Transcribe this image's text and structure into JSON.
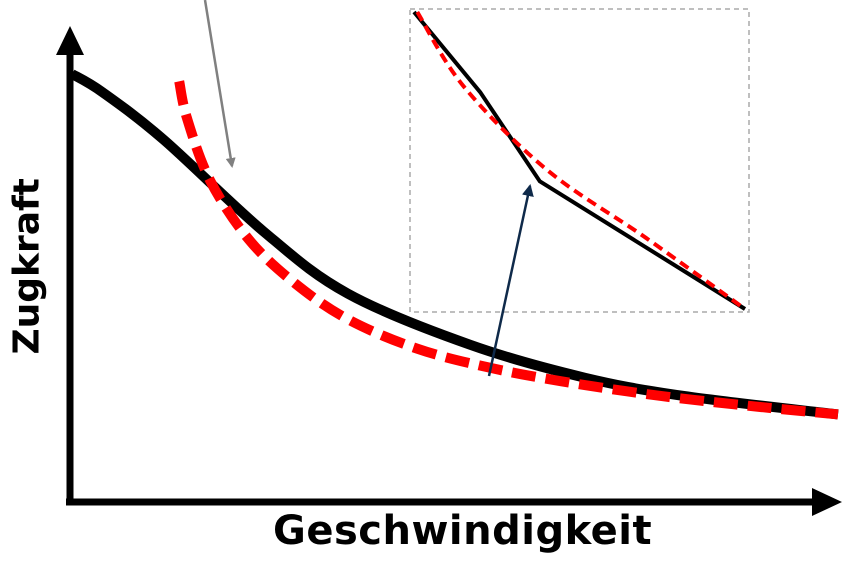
{
  "chart_data": {
    "type": "line",
    "xlabel": "Geschwindigkeit",
    "ylabel": "Zugkraft",
    "xlim": [
      0,
      100
    ],
    "ylim": [
      0,
      100
    ],
    "grid": false,
    "series": [
      {
        "style": "solid",
        "color": "#000000",
        "x": [
          0,
          4,
          12,
          25,
          36,
          52,
          67,
          80,
          100
        ],
        "y": [
          100,
          95,
          82,
          57,
          40,
          26,
          17,
          12,
          7
        ]
      },
      {
        "style": "dashed",
        "color": "#ff0000",
        "x": [
          14,
          15,
          18,
          23,
          29,
          36,
          45,
          54,
          64,
          77,
          90,
          100
        ],
        "y": [
          98,
          88,
          71,
          55,
          43,
          33,
          25,
          20,
          16,
          12,
          9,
          7
        ]
      }
    ],
    "inset": {
      "solid": {
        "x": [
          0,
          20,
          38,
          100
        ],
        "y": [
          100,
          73,
          43,
          0
        ]
      },
      "dashed": {
        "x": [
          1,
          15,
          40,
          70,
          100
        ],
        "y": [
          100,
          75,
          47,
          24,
          0
        ]
      }
    }
  },
  "colors": {
    "axis": "#000000",
    "dashed_line": "#ff0000",
    "solid_line": "#000000",
    "gray_arrow": "#808080",
    "navy_arrow": "#0f2a4a",
    "inset_border": "#aaaaaa"
  }
}
